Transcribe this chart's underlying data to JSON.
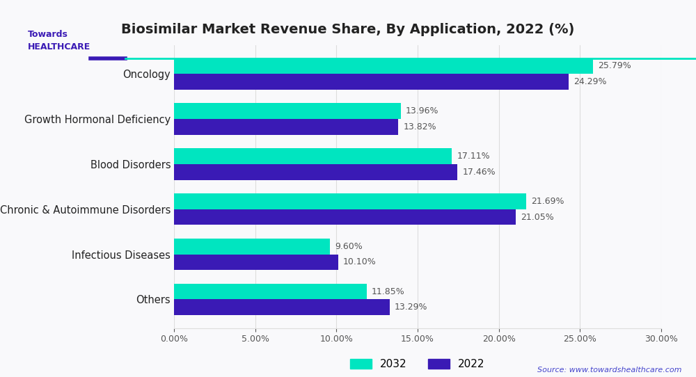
{
  "title": "Biosimilar Market Revenue Share, By Application, 2022 (%)",
  "categories": [
    "Others",
    "Infectious Diseases",
    "Chronic & Autoimmune Disorders",
    "Blood Disorders",
    "Growth Hormonal Deficiency",
    "Oncology"
  ],
  "values_2032": [
    11.85,
    9.6,
    21.69,
    17.11,
    13.96,
    25.79
  ],
  "values_2022": [
    13.29,
    10.1,
    21.05,
    17.46,
    13.82,
    24.29
  ],
  "color_2032": "#00e5c0",
  "color_2022": "#3a1ab5",
  "bar_height": 0.35,
  "xlim": [
    0,
    30
  ],
  "xticks": [
    0,
    5,
    10,
    15,
    20,
    25,
    30
  ],
  "legend_labels": [
    "2032",
    "2022"
  ],
  "source_text": "Source: www.towardshealthcare.com",
  "bg_color": "#f9f9fb",
  "grid_color": "#dddddd",
  "label_color_dark": "#555555",
  "title_color": "#222222",
  "logo_bar_color1": "#3a1ab5",
  "logo_bar_color2": "#00e5c0"
}
